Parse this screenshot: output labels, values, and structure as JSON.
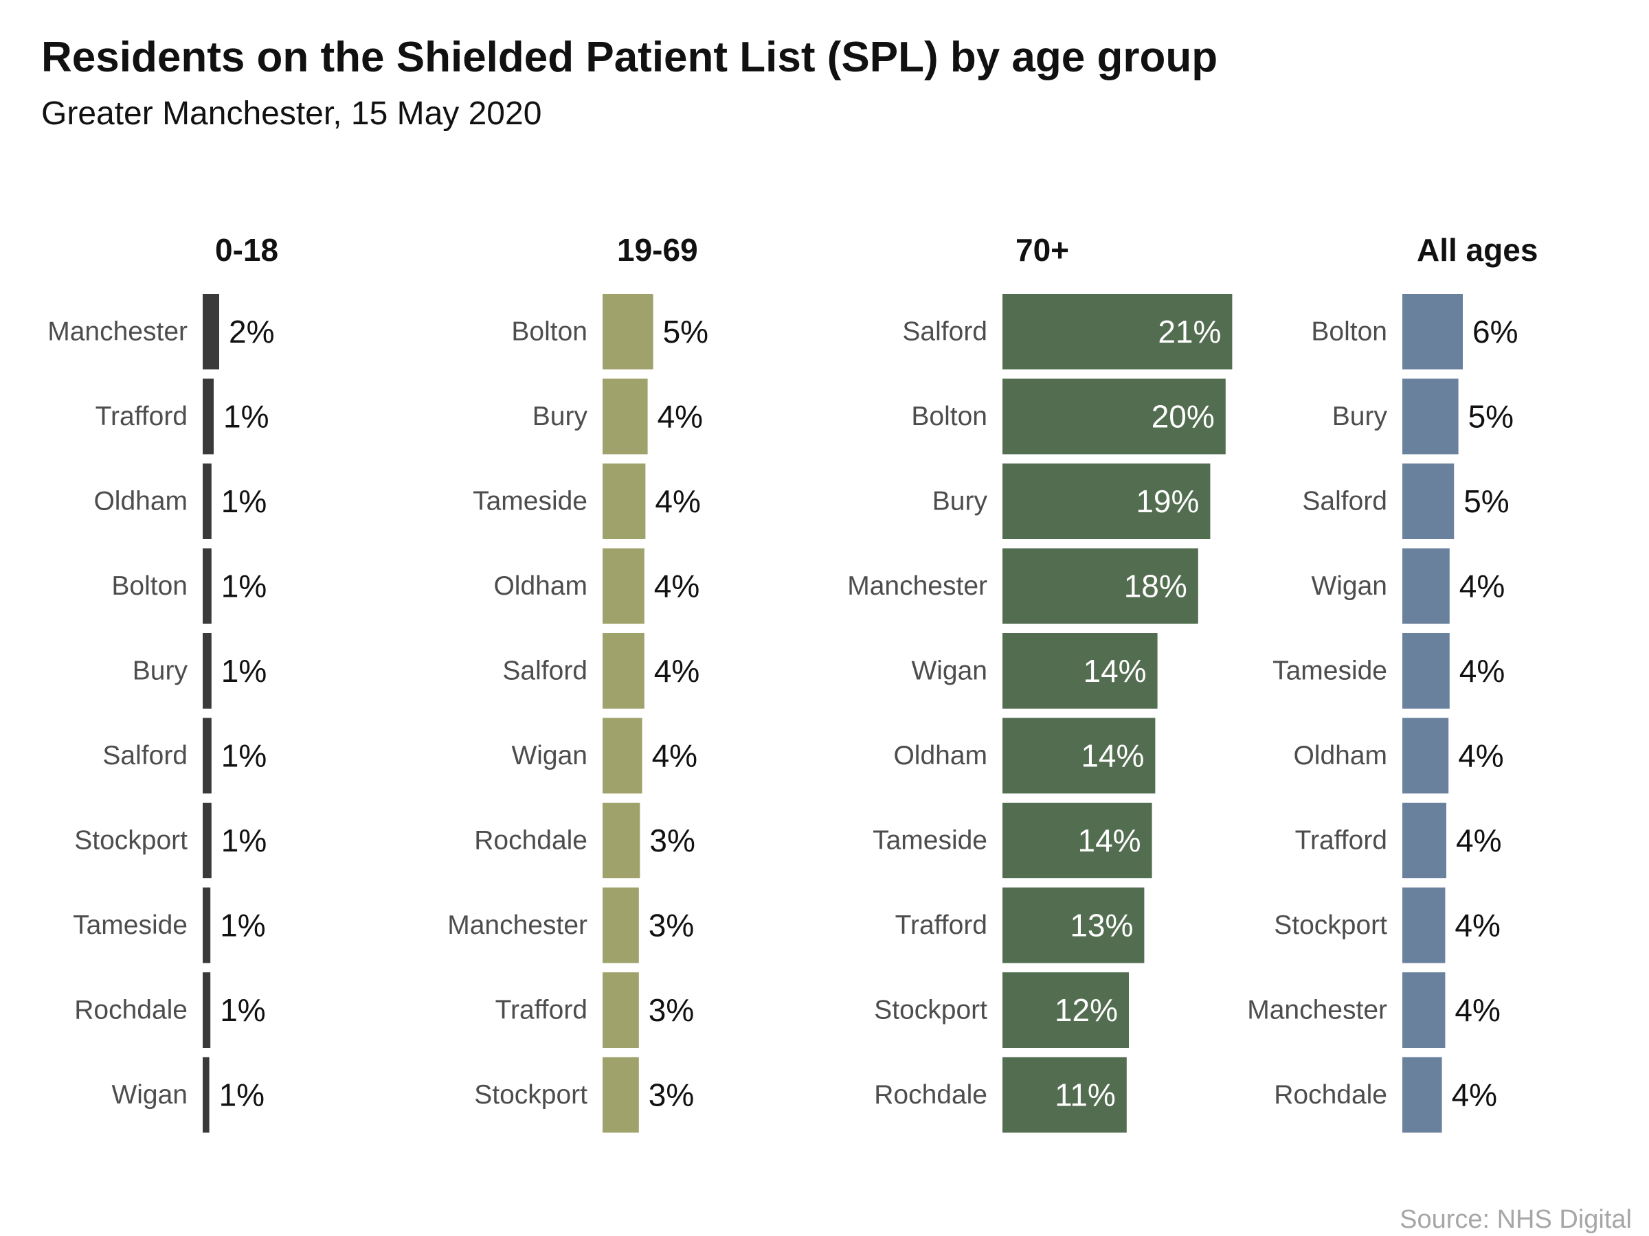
{
  "chart_data": {
    "type": "bar",
    "orientation": "horizontal",
    "title": "Residents on the Shielded Patient List (SPL) by age group",
    "subtitle": "Greater Manchester, 15 May 2020",
    "source": "Source: NHS Digital",
    "grid": false,
    "unit": "%",
    "panels": [
      {
        "name": "0-18",
        "color": "#3a3a3a",
        "label_color": "#111111",
        "label_position": "outside",
        "categories": [
          "Manchester",
          "Trafford",
          "Oldham",
          "Bolton",
          "Bury",
          "Salford",
          "Stockport",
          "Tameside",
          "Rochdale",
          "Wigan"
        ],
        "values": [
          1.5,
          1.0,
          0.8,
          0.8,
          0.8,
          0.8,
          0.8,
          0.7,
          0.7,
          0.6
        ],
        "labels": [
          "2%",
          "1%",
          "1%",
          "1%",
          "1%",
          "1%",
          "1%",
          "1%",
          "1%",
          "1%"
        ]
      },
      {
        "name": "19-69",
        "color": "#a0a26b",
        "label_color": "#111111",
        "label_position": "outside",
        "categories": [
          "Bolton",
          "Bury",
          "Tameside",
          "Oldham",
          "Salford",
          "Wigan",
          "Rochdale",
          "Manchester",
          "Trafford",
          "Stockport"
        ],
        "values": [
          4.6,
          4.1,
          3.9,
          3.8,
          3.8,
          3.6,
          3.4,
          3.3,
          3.3,
          3.3
        ],
        "labels": [
          "5%",
          "4%",
          "4%",
          "4%",
          "4%",
          "4%",
          "3%",
          "3%",
          "3%",
          "3%"
        ]
      },
      {
        "name": "70+",
        "color": "#536d50",
        "label_color": "#ffffff",
        "label_position": "inside",
        "categories": [
          "Salford",
          "Bolton",
          "Bury",
          "Manchester",
          "Wigan",
          "Oldham",
          "Tameside",
          "Trafford",
          "Stockport",
          "Rochdale"
        ],
        "values": [
          20.9,
          20.3,
          18.9,
          17.8,
          14.1,
          13.9,
          13.6,
          12.9,
          11.5,
          11.3
        ],
        "labels": [
          "21%",
          "20%",
          "19%",
          "18%",
          "14%",
          "14%",
          "14%",
          "13%",
          "12%",
          "11%"
        ]
      },
      {
        "name": "All ages",
        "color": "#6a819e",
        "label_color": "#111111",
        "label_position": "outside",
        "categories": [
          "Bolton",
          "Bury",
          "Salford",
          "Wigan",
          "Tameside",
          "Oldham",
          "Trafford",
          "Stockport",
          "Manchester",
          "Rochdale"
        ],
        "values": [
          5.5,
          5.1,
          4.7,
          4.3,
          4.3,
          4.2,
          4.0,
          3.9,
          3.9,
          3.6
        ],
        "labels": [
          "6%",
          "5%",
          "5%",
          "4%",
          "4%",
          "4%",
          "4%",
          "4%",
          "4%",
          "4%"
        ]
      }
    ]
  }
}
